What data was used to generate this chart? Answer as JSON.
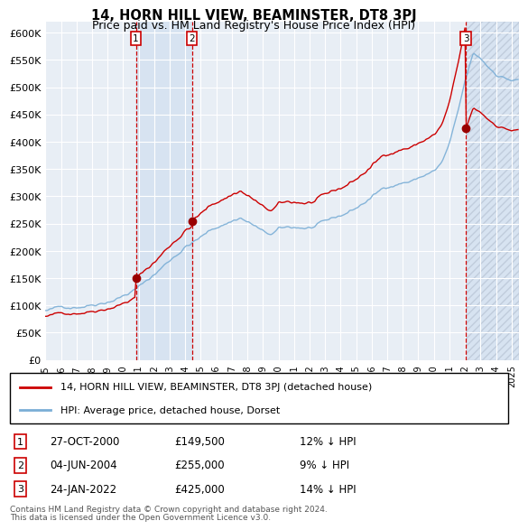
{
  "title": "14, HORN HILL VIEW, BEAMINSTER, DT8 3PJ",
  "subtitle": "Price paid vs. HM Land Registry's House Price Index (HPI)",
  "ylim": [
    0,
    620000
  ],
  "yticks": [
    0,
    50000,
    100000,
    150000,
    200000,
    250000,
    300000,
    350000,
    400000,
    450000,
    500000,
    550000,
    600000
  ],
  "ytick_labels": [
    "£0",
    "£50K",
    "£100K",
    "£150K",
    "£200K",
    "£250K",
    "£300K",
    "£350K",
    "£400K",
    "£450K",
    "£500K",
    "£550K",
    "£600K"
  ],
  "transactions": [
    {
      "date": "27-OCT-2000",
      "price": 149500,
      "label": "1",
      "year": 2000.82,
      "hpi_pct": "12% ↓ HPI"
    },
    {
      "date": "04-JUN-2004",
      "price": 255000,
      "label": "2",
      "year": 2004.42,
      "hpi_pct": "9% ↓ HPI"
    },
    {
      "date": "24-JAN-2022",
      "price": 425000,
      "label": "3",
      "year": 2022.07,
      "hpi_pct": "14% ↓ HPI"
    }
  ],
  "legend_property": "14, HORN HILL VIEW, BEAMINSTER, DT8 3PJ (detached house)",
  "legend_hpi": "HPI: Average price, detached house, Dorset",
  "footnote1": "Contains HM Land Registry data © Crown copyright and database right 2024.",
  "footnote2": "This data is licensed under the Open Government Licence v3.0.",
  "property_color": "#cc0000",
  "hpi_color": "#7aaed6",
  "marker_box_color": "#cc0000",
  "vline_color": "#cc0000",
  "background_color": "#e8eef5",
  "grid_color": "#ffffff",
  "shade_color": "#d0dff0"
}
